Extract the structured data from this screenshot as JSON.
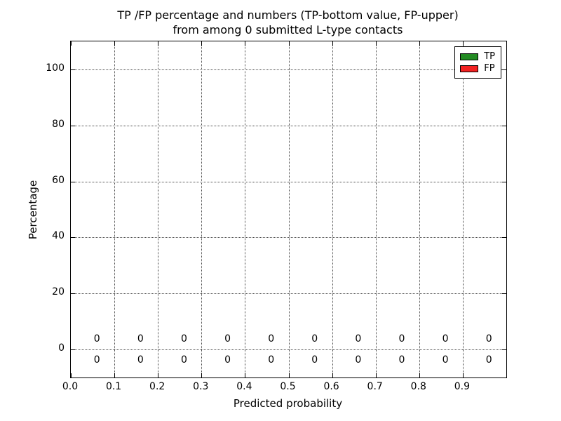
{
  "figure": {
    "background": "#ffffff"
  },
  "chart_data": {
    "type": "bar",
    "title_line1": "TP /FP percentage and numbers (TP-bottom value, FP-upper)",
    "title_line2": "from among 0 submitted L-type contacts",
    "xlabel": "Predicted probability",
    "ylabel": "Percentage",
    "xlim": [
      0.0,
      1.0
    ],
    "ylim": [
      -10,
      110
    ],
    "x_ticks": [
      {
        "value": 0.0,
        "label": "0.0"
      },
      {
        "value": 0.1,
        "label": "0.1"
      },
      {
        "value": 0.2,
        "label": "0.2"
      },
      {
        "value": 0.3,
        "label": "0.3"
      },
      {
        "value": 0.4,
        "label": "0.4"
      },
      {
        "value": 0.5,
        "label": "0.5"
      },
      {
        "value": 0.6,
        "label": "0.6"
      },
      {
        "value": 0.7,
        "label": "0.7"
      },
      {
        "value": 0.8,
        "label": "0.8"
      },
      {
        "value": 0.9,
        "label": "0.9"
      }
    ],
    "y_ticks": [
      {
        "value": 0,
        "label": "0"
      },
      {
        "value": 20,
        "label": "20"
      },
      {
        "value": 40,
        "label": "40"
      },
      {
        "value": 60,
        "label": "60"
      },
      {
        "value": 80,
        "label": "80"
      },
      {
        "value": 100,
        "label": "100"
      }
    ],
    "grid": {
      "on": true,
      "style": "dotted",
      "color": "#4a4a4a"
    },
    "legend": {
      "position": "upper-right",
      "entries": [
        {
          "label": "TP",
          "color": "#228b22"
        },
        {
          "label": "FP",
          "color": "#f22222"
        }
      ]
    },
    "bin_centers": [
      0.06,
      0.16,
      0.26,
      0.36,
      0.46,
      0.56,
      0.66,
      0.76,
      0.86,
      0.96
    ],
    "series": [
      {
        "name": "TP",
        "color": "#228b22",
        "values": [
          0,
          0,
          0,
          0,
          0,
          0,
          0,
          0,
          0,
          0
        ]
      },
      {
        "name": "FP",
        "color": "#f22222",
        "values": [
          0,
          0,
          0,
          0,
          0,
          0,
          0,
          0,
          0,
          0
        ]
      }
    ],
    "count_labels": {
      "fp_row_y": 3.5,
      "tp_row_y": -4.0,
      "fp": [
        "0",
        "0",
        "0",
        "0",
        "0",
        "0",
        "0",
        "0",
        "0",
        "0"
      ],
      "tp": [
        "0",
        "0",
        "0",
        "0",
        "0",
        "0",
        "0",
        "0",
        "0",
        "0"
      ]
    }
  }
}
